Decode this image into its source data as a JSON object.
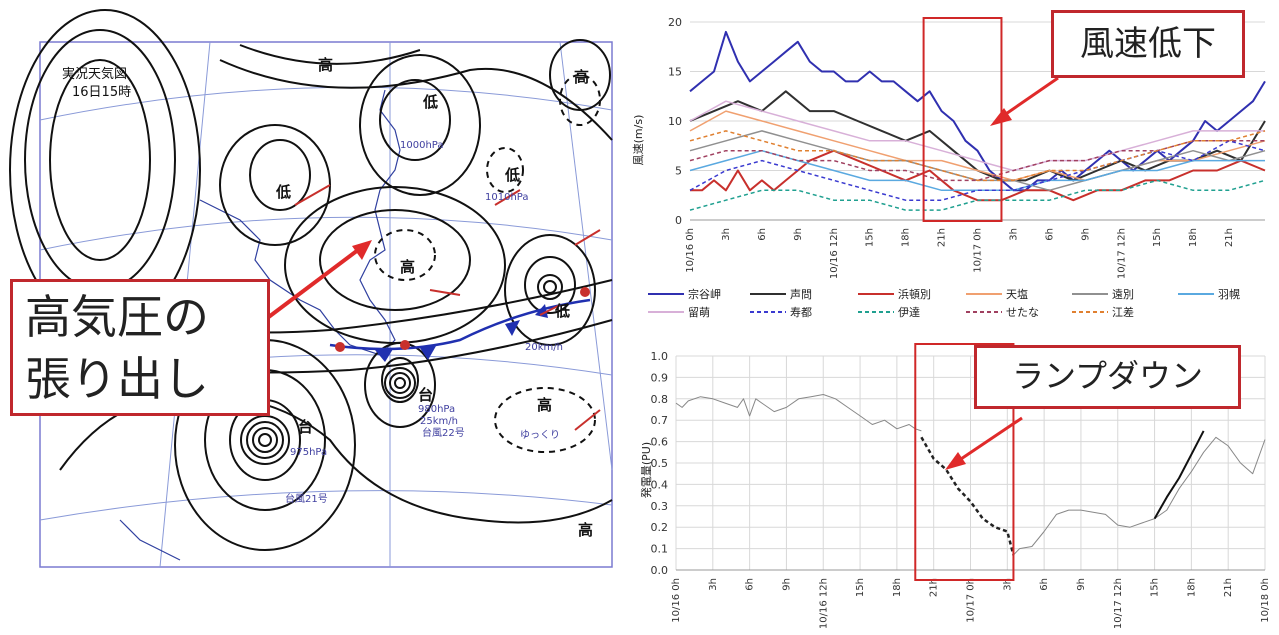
{
  "weather_map": {
    "title": "実況天気図",
    "time": "16日15時",
    "pressure_labels": [
      "高",
      "高",
      "高",
      "高",
      "高",
      "低",
      "低",
      "低",
      "低"
    ],
    "typhoons": [
      {
        "symbol": "台",
        "pressure": "975hPa",
        "speed": "ゆっくり",
        "name": "台風21号"
      },
      {
        "symbol": "台",
        "pressure": "980hPa",
        "speed": "25km/h",
        "name": "台風22号"
      }
    ],
    "notes": [
      "1010hPa",
      "1000hPa",
      "20km/h",
      "ゆっくり"
    ]
  },
  "callouts": {
    "high_pressure": [
      "高気圧の",
      "張り出し"
    ],
    "wind_drop": "風速低下",
    "ramp_down": "ランプダウン"
  },
  "x_tick_labels": [
    "10/16 0h",
    "3h",
    "6h",
    "9h",
    "10/16 12h",
    "15h",
    "18h",
    "21h",
    "10/17 0h",
    "3h",
    "6h",
    "9h",
    "10/17 12h",
    "15h",
    "18h",
    "21h",
    "10/18 0h"
  ],
  "chart_data": [
    {
      "type": "line",
      "ylabel": "風速(m/s)",
      "ylim": [
        0,
        20
      ],
      "yticks": [
        0,
        5,
        10,
        15,
        20
      ],
      "x_hours_range": [
        0,
        48
      ],
      "highlight_hours": [
        19.5,
        26
      ],
      "series": [
        {
          "name": "宗谷岬",
          "color": "#3030b0",
          "dash": "solid",
          "width": 2,
          "x": [
            0,
            1,
            2,
            3,
            4,
            5,
            6,
            7,
            8,
            9,
            10,
            11,
            12,
            13,
            14,
            15,
            16,
            17,
            18,
            19,
            20,
            21,
            22,
            23,
            24,
            25,
            26,
            27,
            28,
            29,
            30,
            31,
            32,
            33,
            34,
            35,
            36,
            37,
            38,
            39,
            40,
            41,
            42,
            43,
            44,
            45,
            46,
            47,
            48
          ],
          "values": [
            13,
            14,
            15,
            19,
            16,
            14,
            15,
            16,
            17,
            18,
            16,
            15,
            15,
            14,
            14,
            15,
            14,
            14,
            13,
            12,
            13,
            11,
            10,
            8,
            7,
            5,
            4,
            3,
            3,
            4,
            4,
            5,
            4,
            5,
            6,
            7,
            6,
            5,
            6,
            7,
            6,
            7,
            8,
            10,
            9,
            10,
            11,
            12,
            14
          ]
        },
        {
          "name": "声問",
          "color": "#303030",
          "dash": "solid",
          "width": 2,
          "x": [
            0,
            2,
            4,
            6,
            8,
            10,
            12,
            14,
            16,
            18,
            20,
            22,
            24,
            26,
            28,
            30,
            32,
            34,
            36,
            38,
            40,
            42,
            44,
            46,
            48
          ],
          "values": [
            10,
            11,
            12,
            11,
            13,
            11,
            11,
            10,
            9,
            8,
            9,
            7,
            5,
            4,
            4,
            5,
            4,
            5,
            6,
            5,
            6,
            6,
            7,
            6,
            10
          ]
        },
        {
          "name": "浜頓別",
          "color": "#c8302c",
          "dash": "solid",
          "width": 2,
          "x": [
            0,
            1,
            2,
            3,
            4,
            5,
            6,
            7,
            8,
            9,
            10,
            12,
            14,
            16,
            18,
            20,
            22,
            24,
            26,
            28,
            30,
            32,
            34,
            36,
            38,
            40,
            42,
            44,
            46,
            48
          ],
          "values": [
            3,
            3,
            4,
            3,
            5,
            3,
            4,
            3,
            4,
            5,
            6,
            7,
            6,
            5,
            4,
            5,
            3,
            2,
            2,
            3,
            3,
            2,
            3,
            3,
            4,
            4,
            5,
            5,
            6,
            5
          ]
        },
        {
          "name": "天塩",
          "color": "#f0a070",
          "dash": "solid",
          "width": 1.5,
          "x": [
            0,
            3,
            6,
            9,
            12,
            15,
            18,
            21,
            24,
            27,
            30,
            33,
            36,
            39,
            42,
            45,
            48
          ],
          "values": [
            9,
            11,
            10,
            9,
            8,
            7,
            6,
            6,
            5,
            4,
            5,
            4,
            5,
            6,
            6,
            7,
            8
          ]
        },
        {
          "name": "遠別",
          "color": "#909090",
          "dash": "solid",
          "width": 1.5,
          "x": [
            0,
            3,
            6,
            9,
            12,
            15,
            18,
            21,
            24,
            27,
            30,
            33,
            36,
            39,
            42,
            45,
            48
          ],
          "values": [
            7,
            8,
            9,
            8,
            7,
            6,
            6,
            5,
            4,
            4,
            3,
            4,
            5,
            6,
            7,
            6,
            7
          ]
        },
        {
          "name": "羽幌",
          "color": "#5aa9e0",
          "dash": "solid",
          "width": 1.5,
          "x": [
            0,
            3,
            6,
            9,
            12,
            15,
            18,
            21,
            24,
            27,
            30,
            33,
            36,
            39,
            42,
            45,
            48
          ],
          "values": [
            5,
            6,
            7,
            6,
            5,
            4,
            4,
            3,
            3,
            3,
            4,
            4,
            5,
            5,
            6,
            6,
            6
          ]
        },
        {
          "name": "留萌",
          "color": "#d8b0d8",
          "dash": "solid",
          "width": 1.5,
          "x": [
            0,
            3,
            6,
            9,
            12,
            15,
            18,
            21,
            24,
            27,
            30,
            33,
            36,
            39,
            42,
            45,
            48
          ],
          "values": [
            10,
            12,
            11,
            10,
            9,
            8,
            8,
            7,
            6,
            5,
            6,
            6,
            7,
            8,
            9,
            9,
            9
          ]
        },
        {
          "name": "寿都",
          "color": "#3a3ad0",
          "dash": "dashed",
          "width": 1.5,
          "x": [
            0,
            3,
            6,
            9,
            12,
            15,
            18,
            21,
            24,
            27,
            30,
            33,
            36,
            39,
            42,
            45,
            48
          ],
          "values": [
            3,
            5,
            6,
            5,
            4,
            3,
            2,
            2,
            3,
            3,
            4,
            5,
            6,
            7,
            6,
            8,
            7
          ]
        },
        {
          "name": "伊達",
          "color": "#20a090",
          "dash": "dashed",
          "width": 1.5,
          "x": [
            0,
            3,
            6,
            9,
            12,
            15,
            18,
            21,
            24,
            27,
            30,
            33,
            36,
            39,
            42,
            45,
            48
          ],
          "values": [
            1,
            2,
            3,
            3,
            2,
            2,
            1,
            1,
            2,
            2,
            2,
            3,
            3,
            4,
            3,
            3,
            4
          ]
        },
        {
          "name": "せたな",
          "color": "#a04060",
          "dash": "dashed",
          "width": 1.5,
          "x": [
            0,
            3,
            6,
            9,
            12,
            15,
            18,
            21,
            24,
            27,
            30,
            33,
            36,
            39,
            42,
            45,
            48
          ],
          "values": [
            6,
            7,
            7,
            6,
            6,
            5,
            5,
            4,
            4,
            5,
            6,
            6,
            7,
            7,
            8,
            8,
            8
          ]
        },
        {
          "name": "江差",
          "color": "#e08030",
          "dash": "dashed",
          "width": 1.5,
          "x": [
            0,
            3,
            6,
            9,
            12,
            15,
            18,
            21,
            24,
            27,
            30,
            33,
            36,
            39,
            42,
            45,
            48
          ],
          "values": [
            8,
            9,
            8,
            7,
            7,
            6,
            6,
            5,
            4,
            4,
            5,
            5,
            6,
            7,
            8,
            8,
            9
          ]
        }
      ]
    },
    {
      "type": "line",
      "ylabel": "発電量(PU)",
      "ylim": [
        0,
        1.0
      ],
      "yticks": [
        "0.0",
        "0.1",
        "0.2",
        "0.3",
        "0.4",
        "0.5",
        "0.6",
        "0.7",
        "0.8",
        "0.9",
        "1.0"
      ],
      "x_hours_range": [
        0,
        48
      ],
      "highlight_hours": [
        19.5,
        27.5
      ],
      "series": [
        {
          "name": "",
          "color": "#888888",
          "dash": "solid",
          "width": 1,
          "x": [
            0,
            0.5,
            1,
            2,
            3,
            4,
            5,
            5.5,
            6,
            6.5,
            7,
            8,
            9,
            10,
            11,
            12,
            13,
            14,
            15,
            16,
            17,
            18,
            19,
            19.5,
            20
          ],
          "values": [
            0.78,
            0.76,
            0.79,
            0.81,
            0.8,
            0.78,
            0.76,
            0.8,
            0.72,
            0.8,
            0.78,
            0.74,
            0.76,
            0.8,
            0.81,
            0.82,
            0.8,
            0.76,
            0.72,
            0.68,
            0.7,
            0.66,
            0.68,
            0.66,
            0.65
          ]
        },
        {
          "name": "",
          "color": "#222222",
          "dash": "dashed",
          "width": 2.5,
          "x": [
            20,
            21,
            22,
            23,
            24,
            25,
            26,
            27,
            27.5
          ],
          "values": [
            0.62,
            0.52,
            0.47,
            0.38,
            0.32,
            0.24,
            0.2,
            0.18,
            0.07
          ]
        },
        {
          "name": "",
          "color": "#888888",
          "dash": "solid",
          "width": 1,
          "x": [
            27.5,
            28,
            29,
            30,
            31,
            32,
            33,
            34,
            35,
            36,
            37,
            38,
            39,
            40,
            41,
            42,
            43,
            44,
            45,
            46,
            47,
            48
          ],
          "values": [
            0.07,
            0.1,
            0.11,
            0.18,
            0.26,
            0.28,
            0.28,
            0.27,
            0.26,
            0.21,
            0.2,
            0.22,
            0.24,
            0.28,
            0.38,
            0.46,
            0.55,
            0.62,
            0.58,
            0.5,
            0.45,
            0.61
          ]
        },
        {
          "name": "",
          "color": "#111111",
          "dash": "solid",
          "width": 2,
          "x": [
            39,
            40,
            41,
            42,
            43
          ],
          "values": [
            0.24,
            0.34,
            0.43,
            0.54,
            0.65
          ]
        }
      ]
    }
  ]
}
